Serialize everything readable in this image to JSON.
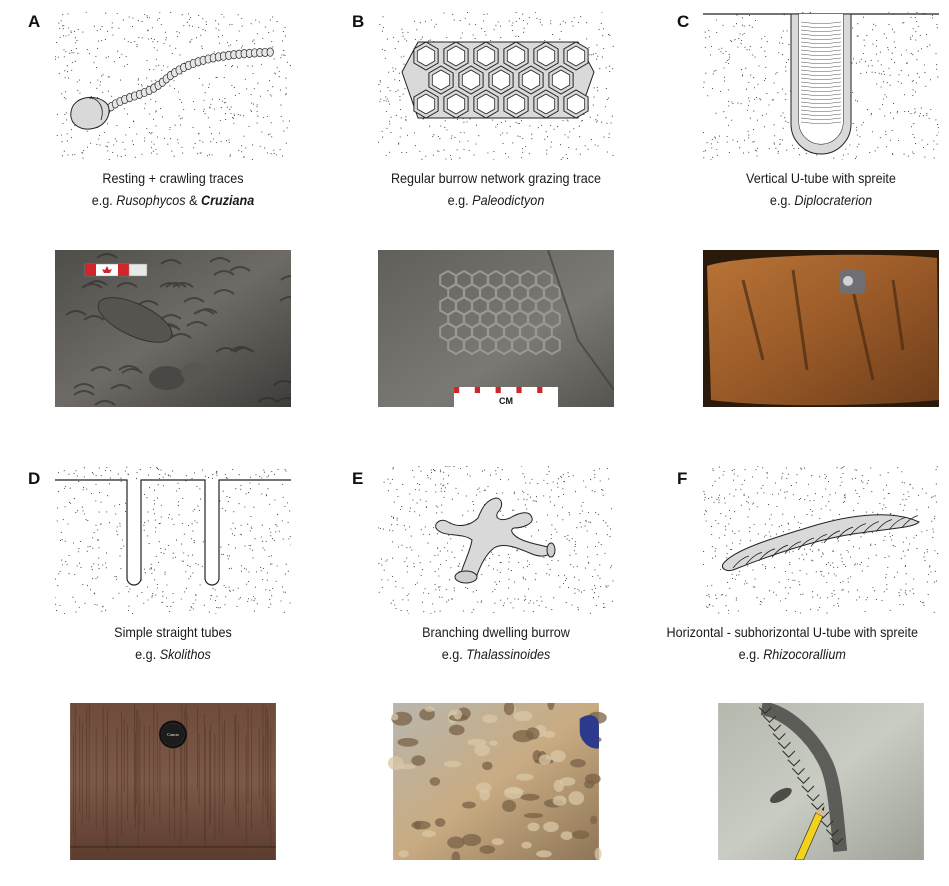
{
  "panels": [
    {
      "letter": "A",
      "title": "Resting + crawling traces",
      "eg": "e.g.",
      "taxa": [
        {
          "name": "Rusophycos",
          "style": "italic"
        },
        {
          "sep": " & "
        },
        {
          "name": "Cruziana",
          "style": "bold-italic"
        }
      ]
    },
    {
      "letter": "B",
      "title": "Regular burrow network grazing trace",
      "eg": "e.g.",
      "taxon": "Paleodictyon"
    },
    {
      "letter": "C",
      "title": "Vertical U-tube with spreite",
      "eg": "e.g.",
      "taxon": "Diplocraterion"
    },
    {
      "letter": "D",
      "title": "Simple straight tubes",
      "eg": "e.g.",
      "taxon": "Skolithos"
    },
    {
      "letter": "E",
      "title": "Branching dwelling burrow",
      "eg": "e.g.",
      "taxon": "Thalassinoides"
    },
    {
      "letter": "F",
      "title": "Horizontal - subhorizontal U-tube with spreite",
      "eg": "e.g.",
      "taxon": "Rhizocorallium"
    }
  ],
  "photo_labels": {
    "scale_bar": "CM",
    "lens_cap": "Canon"
  },
  "colors": {
    "sketch_fill": "#d9d9d9",
    "sketch_stroke": "#222222",
    "stipple": "#333333",
    "scale_red": "#d0262b"
  }
}
